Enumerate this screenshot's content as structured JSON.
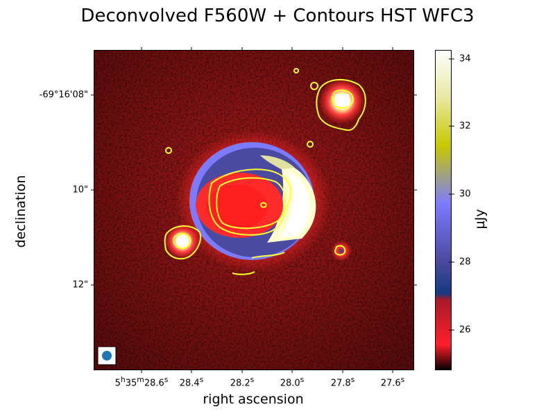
{
  "figure": {
    "title": "Deconvolved F560W + Contours HST WFC3",
    "xlabel": "right ascension",
    "ylabel": "declination",
    "y_ticks": [
      "-69°16'08\"",
      "10\"",
      "12\""
    ],
    "x_ticks": [
      "5h35m28.6s",
      "28.4s",
      "28.2s",
      "28.0s",
      "27.8s",
      "27.6s"
    ],
    "colorbar": {
      "label": "µJy",
      "ticks": [
        "34",
        "32",
        "30",
        "28",
        "26"
      ],
      "range": [
        24.8,
        34.2
      ],
      "colors": [
        "#000000",
        "#ff1f2a",
        "#3b3a7c",
        "#7b7bff",
        "#c8c800",
        "#ffffff"
      ]
    },
    "beam_marker_color": "#1f77b4",
    "contour_color": "#ffff33"
  }
}
